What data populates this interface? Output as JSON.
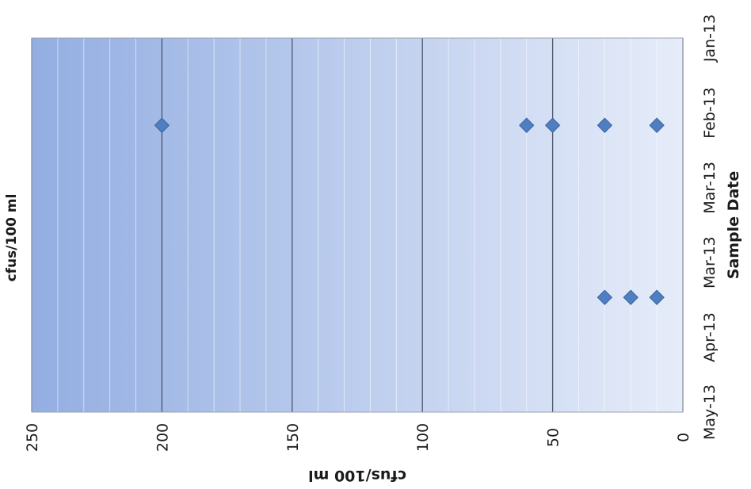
{
  "chart_data": {
    "type": "scatter",
    "orientation": "rotated-90-clockwise",
    "title": "cfus/100 ml",
    "xlabel": "Sample Date",
    "ylabel": "cfus/100 ml",
    "x_tick_labels": [
      "Jan-13",
      "Feb-13",
      "Mar-13",
      "Mar-13",
      "Apr-13",
      "May-13"
    ],
    "x_tick_dates": [
      "2013-01-01",
      "2013-01-31",
      "2013-03-02",
      "2013-04-01",
      "2013-05-01",
      "2013-05-31"
    ],
    "xlim": [
      "2013-01-01",
      "2013-05-31"
    ],
    "y_tick_labels": [
      "250",
      "200",
      "150",
      "100",
      "50",
      "0"
    ],
    "ylim": [
      0,
      250
    ],
    "major_grid_step": 50,
    "minor_grid_step": 10,
    "grid": true,
    "legend": "none",
    "series": [
      {
        "points": [
          {
            "x": "2013-02-05",
            "y": 200
          },
          {
            "x": "2013-02-05",
            "y": 60
          },
          {
            "x": "2013-02-05",
            "y": 50
          },
          {
            "x": "2013-02-05",
            "y": 30
          },
          {
            "x": "2013-02-05",
            "y": 10
          },
          {
            "x": "2013-04-15",
            "y": 30
          },
          {
            "x": "2013-04-15",
            "y": 20
          },
          {
            "x": "2013-04-15",
            "y": 10
          }
        ]
      }
    ],
    "colors": {
      "marker": "#4f7fc0",
      "marker_stroke": "#3b64a0",
      "plot_bg_deep": "#93aee2",
      "plot_bg_light": "#e6ecf9",
      "major_grid": "#4a5568",
      "minor_grid": "#ffffff",
      "text": "#1a1a1a"
    }
  }
}
